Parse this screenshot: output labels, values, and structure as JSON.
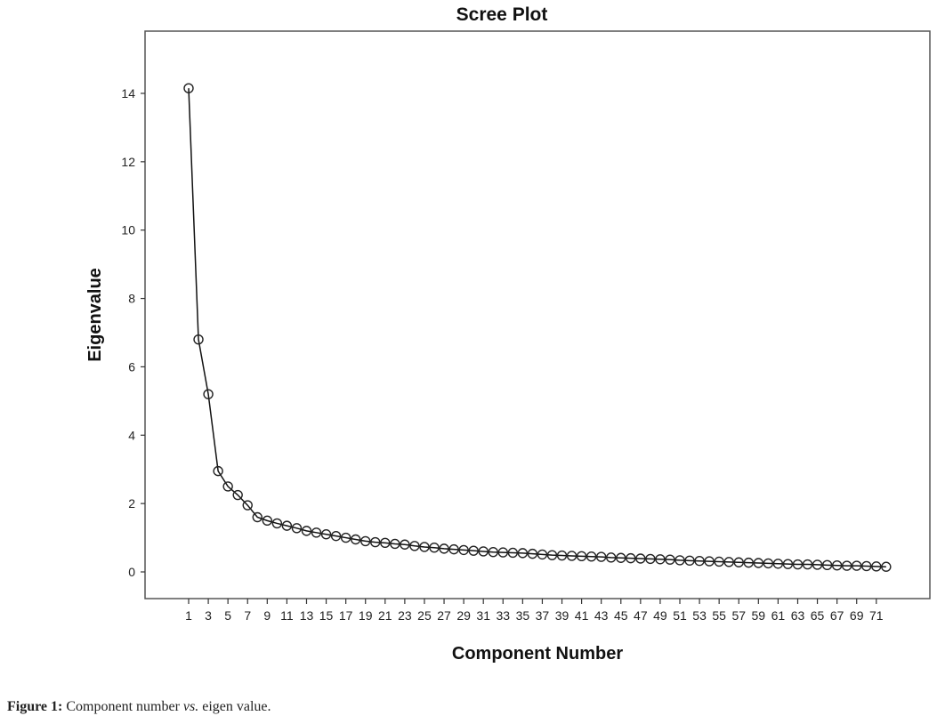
{
  "chart_data": {
    "type": "line",
    "title": "Scree Plot",
    "xlabel": "Component Number",
    "ylabel": "Eigenvalue",
    "xlim": [
      1,
      72
    ],
    "ylim": [
      -0.8,
      15.5
    ],
    "yticks": [
      0,
      2,
      4,
      6,
      8,
      10,
      12,
      14
    ],
    "xticks": [
      1,
      3,
      5,
      7,
      9,
      11,
      13,
      15,
      17,
      19,
      21,
      23,
      25,
      27,
      29,
      31,
      33,
      35,
      37,
      39,
      41,
      43,
      45,
      47,
      49,
      51,
      53,
      55,
      57,
      59,
      61,
      63,
      65,
      67,
      69,
      71
    ],
    "grid": false,
    "marker": "open-circle",
    "x": [
      1,
      2,
      3,
      4,
      5,
      6,
      7,
      8,
      9,
      10,
      11,
      12,
      13,
      14,
      15,
      16,
      17,
      18,
      19,
      20,
      21,
      22,
      23,
      24,
      25,
      26,
      27,
      28,
      29,
      30,
      31,
      32,
      33,
      34,
      35,
      36,
      37,
      38,
      39,
      40,
      41,
      42,
      43,
      44,
      45,
      46,
      47,
      48,
      49,
      50,
      51,
      52,
      53,
      54,
      55,
      56,
      57,
      58,
      59,
      60,
      61,
      62,
      63,
      64,
      65,
      66,
      67,
      68,
      69,
      70,
      71,
      72
    ],
    "y": [
      14.15,
      6.8,
      5.2,
      2.95,
      2.5,
      2.25,
      1.95,
      1.6,
      1.5,
      1.42,
      1.35,
      1.28,
      1.2,
      1.15,
      1.1,
      1.05,
      1.0,
      0.95,
      0.9,
      0.87,
      0.85,
      0.82,
      0.8,
      0.76,
      0.73,
      0.71,
      0.68,
      0.66,
      0.64,
      0.62,
      0.6,
      0.58,
      0.57,
      0.56,
      0.55,
      0.53,
      0.51,
      0.49,
      0.48,
      0.47,
      0.46,
      0.45,
      0.44,
      0.42,
      0.41,
      0.4,
      0.39,
      0.38,
      0.37,
      0.36,
      0.34,
      0.33,
      0.32,
      0.31,
      0.3,
      0.29,
      0.28,
      0.27,
      0.26,
      0.25,
      0.24,
      0.23,
      0.22,
      0.22,
      0.21,
      0.2,
      0.19,
      0.18,
      0.18,
      0.17,
      0.16,
      0.15
    ]
  },
  "caption": {
    "label": "Figure 1:",
    "text_before": " Component number ",
    "text_italic": "vs.",
    "text_after": " eigen value."
  }
}
